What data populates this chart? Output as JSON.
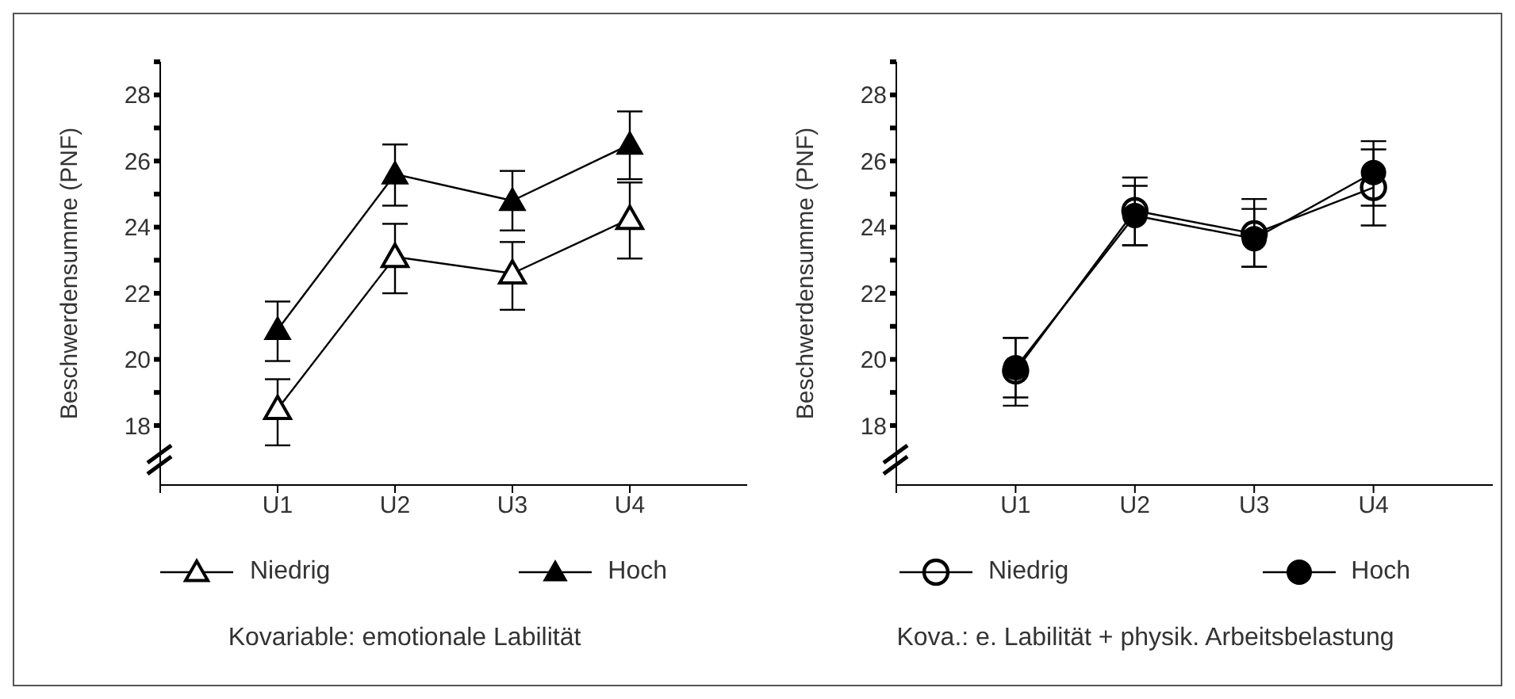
{
  "chart_data": [
    {
      "type": "line",
      "categories": [
        "U1",
        "U2",
        "U3",
        "U4"
      ],
      "ylabel": "Beschwerdensumme (PNF)",
      "ylim": [
        16.2,
        29
      ],
      "yticks": [
        18,
        {
          "value": 19,
          "label": null
        },
        20,
        {
          "value": 21,
          "label": null
        },
        22,
        {
          "value": 23,
          "label": null
        },
        24,
        {
          "value": 25,
          "label": null
        },
        26,
        {
          "value": 27,
          "label": null
        },
        28,
        {
          "value": 29,
          "label": null
        }
      ],
      "marker": "triangle",
      "legend": "bottom",
      "annotations": [
        "Kovariable: emotionale Labilität"
      ],
      "series": [
        {
          "name": "Niedrig",
          "color": "#000000",
          "values": [
            18.5,
            23.1,
            22.6,
            24.25
          ],
          "errors": [
            [
              17.4,
              19.4
            ],
            [
              22.0,
              24.1
            ],
            [
              21.5,
              23.55
            ],
            [
              23.05,
              25.35
            ]
          ]
        },
        {
          "name": "Hoch",
          "color": "#000000",
          "values": [
            20.9,
            25.6,
            24.8,
            26.5
          ],
          "errors": [
            [
              19.95,
              21.75
            ],
            [
              24.65,
              26.5
            ],
            [
              23.9,
              25.7
            ],
            [
              25.45,
              27.5
            ]
          ]
        }
      ]
    },
    {
      "type": "line",
      "categories": [
        "U1",
        "U2",
        "U3",
        "U4"
      ],
      "ylabel": "Beschwerdensumme (PNF)",
      "ylim": [
        16.2,
        29
      ],
      "yticks": [
        18,
        {
          "value": 19,
          "label": null
        },
        20,
        {
          "value": 21,
          "label": null
        },
        22,
        {
          "value": 23,
          "label": null
        },
        24,
        {
          "value": 25,
          "label": null
        },
        26,
        {
          "value": 27,
          "label": null
        },
        28,
        {
          "value": 29,
          "label": null
        }
      ],
      "marker": "circle",
      "legend": "bottom",
      "annotations": [
        "Kova.: e. Labilität + physik. Arbeitsbelastung"
      ],
      "series": [
        {
          "name": "Niedrig",
          "color": "#000000",
          "values": [
            19.65,
            24.5,
            23.8,
            25.2
          ],
          "errors": [
            [
              18.6,
              20.65
            ],
            [
              23.45,
              25.5
            ],
            [
              22.8,
              24.85
            ],
            [
              24.05,
              26.35
            ]
          ]
        },
        {
          "name": "Hoch",
          "color": "#000000",
          "values": [
            19.75,
            24.35,
            23.65,
            25.65
          ],
          "errors": [
            [
              18.85,
              20.65
            ],
            [
              23.45,
              25.25
            ],
            [
              22.8,
              24.55
            ],
            [
              24.65,
              26.6
            ]
          ]
        }
      ]
    }
  ]
}
